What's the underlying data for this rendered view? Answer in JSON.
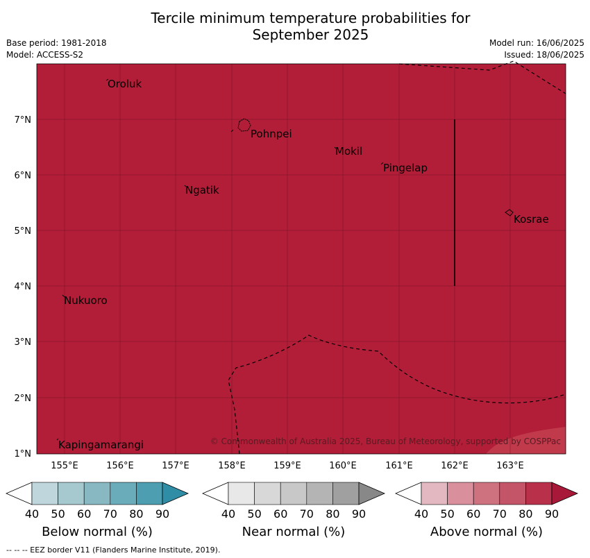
{
  "title_line1": "Tercile minimum temperature probabilities for",
  "title_line2": "September 2025",
  "base_period": "Base period: 1981-2018",
  "model": "Model: ACCESS-S2",
  "model_run": "Model run: 16/06/2025",
  "issued": "Issued: 18/06/2025",
  "map": {
    "lat_labels": [
      "7°N",
      "6°N",
      "5°N",
      "4°N",
      "3°N",
      "2°N",
      "1°N"
    ],
    "lon_labels": [
      "155°E",
      "156°E",
      "157°E",
      "158°E",
      "159°E",
      "160°E",
      "161°E",
      "162°E",
      "163°E"
    ],
    "places": [
      "Oroluk",
      "Pohnpei",
      "Mokil",
      "Pingelap",
      "Ngatik",
      "Kosrae",
      "Nukuoro",
      "Kapingamarangi"
    ],
    "copyright": "© Commonwealth of Australia 2025, Bureau of Meteorology, supported by COSPPac",
    "fill_color": "#b21e38",
    "corner_fill_color": "#c13a4c"
  },
  "colorbars": [
    {
      "title": "Below normal (%)",
      "ticks": [
        "40",
        "50",
        "60",
        "70",
        "80",
        "90"
      ],
      "colors": [
        "#bed6dc",
        "#a6c9cf",
        "#88b9c3",
        "#6aacb9",
        "#4c9eb0",
        "#2f8ea5"
      ]
    },
    {
      "title": "Near normal (%)",
      "ticks": [
        "40",
        "50",
        "60",
        "70",
        "80",
        "90"
      ],
      "colors": [
        "#e8e8e8",
        "#d8d8d8",
        "#c8c8c8",
        "#b4b4b4",
        "#a0a0a0",
        "#888888"
      ]
    },
    {
      "title": "Above normal (%)",
      "ticks": [
        "40",
        "50",
        "60",
        "70",
        "80",
        "90"
      ],
      "colors": [
        "#e4b8c0",
        "#d9909c",
        "#cf7280",
        "#c45468",
        "#b9304a",
        "#a81838"
      ]
    }
  ],
  "footer": "--  --  -- EEZ border V11 (Flanders Marine Institute, 2019)."
}
